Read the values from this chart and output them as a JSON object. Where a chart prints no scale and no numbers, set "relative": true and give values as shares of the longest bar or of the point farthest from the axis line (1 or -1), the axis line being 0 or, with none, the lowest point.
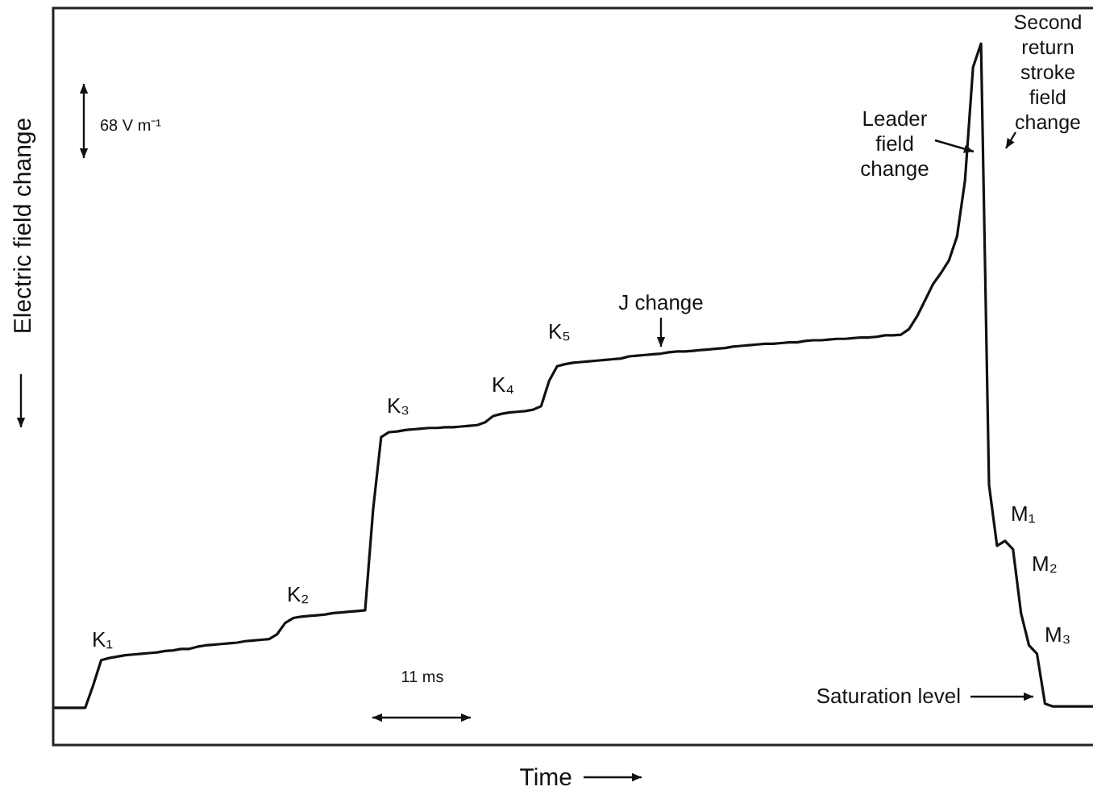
{
  "chart_data": {
    "type": "line",
    "relative": true,
    "xlabel": "Time",
    "ylabel": "Electric field change",
    "legend": false,
    "categories": [
      null,
      null,
      null,
      null,
      null,
      null,
      null,
      null,
      null,
      null,
      null,
      null,
      null,
      null,
      null,
      null,
      null,
      null,
      null,
      null,
      null,
      null,
      null,
      null,
      null,
      null,
      null,
      null,
      null,
      null,
      null,
      null,
      null,
      null,
      null,
      null,
      null,
      null,
      null,
      null,
      null,
      null,
      null,
      null,
      null,
      null,
      null,
      null,
      null,
      null,
      null,
      null,
      null,
      null,
      null,
      null,
      null,
      null,
      null,
      null,
      null,
      null,
      null,
      null,
      null,
      null,
      null,
      null,
      null,
      null,
      null,
      null,
      null,
      null,
      null,
      null,
      null,
      null,
      null,
      null,
      null,
      null,
      null,
      null,
      null,
      null,
      null,
      null,
      null,
      null,
      null,
      null,
      null,
      null,
      null,
      null,
      null,
      null,
      null,
      null,
      null,
      null,
      null,
      null,
      null,
      null,
      null,
      null,
      null,
      null,
      null,
      null,
      null,
      null,
      null,
      null,
      null,
      null,
      null,
      null,
      null,
      null,
      null,
      null,
      null,
      null,
      null,
      null,
      null,
      null,
      null
    ],
    "series": [
      {
        "color": "#111111",
        "values": [
          0.053,
          0.053,
          0.053,
          0.053,
          0.053,
          0.085,
          0.121,
          0.124,
          0.126,
          0.128,
          0.129,
          0.13,
          0.131,
          0.132,
          0.134,
          0.135,
          0.137,
          0.137,
          0.14,
          0.142,
          0.143,
          0.144,
          0.145,
          0.146,
          0.148,
          0.149,
          0.15,
          0.151,
          0.158,
          0.174,
          0.181,
          0.183,
          0.184,
          0.185,
          0.186,
          0.188,
          0.189,
          0.19,
          0.191,
          0.192,
          0.336,
          0.439,
          0.446,
          0.447,
          0.449,
          0.45,
          0.451,
          0.452,
          0.452,
          0.453,
          0.453,
          0.454,
          0.455,
          0.456,
          0.46,
          0.469,
          0.472,
          0.474,
          0.475,
          0.476,
          0.478,
          0.483,
          0.519,
          0.54,
          0.543,
          0.545,
          0.546,
          0.547,
          0.548,
          0.549,
          0.55,
          0.551,
          0.554,
          0.555,
          0.556,
          0.557,
          0.558,
          0.56,
          0.561,
          0.561,
          0.562,
          0.563,
          0.564,
          0.565,
          0.566,
          0.568,
          0.569,
          0.57,
          0.571,
          0.572,
          0.572,
          0.573,
          0.574,
          0.574,
          0.576,
          0.577,
          0.577,
          0.578,
          0.579,
          0.579,
          0.58,
          0.581,
          0.581,
          0.582,
          0.584,
          0.584,
          0.585,
          0.593,
          0.611,
          0.634,
          0.657,
          0.673,
          0.691,
          0.725,
          0.805,
          0.966,
          1,
          0.371,
          0.284,
          0.291,
          0.279,
          0.188,
          0.142,
          0.13,
          0.059,
          0.055,
          0.055,
          0.055,
          0.055,
          0.055,
          0.055
        ]
      }
    ],
    "annotations": [
      "K₁",
      "K₂",
      "K₃",
      "K₄",
      "K₅",
      "J change",
      "Leader field change",
      "Second return stroke field change",
      "M₁",
      "M₂",
      "M₃",
      "Saturation level",
      "68 V m⁻¹",
      "11 ms"
    ]
  }
}
